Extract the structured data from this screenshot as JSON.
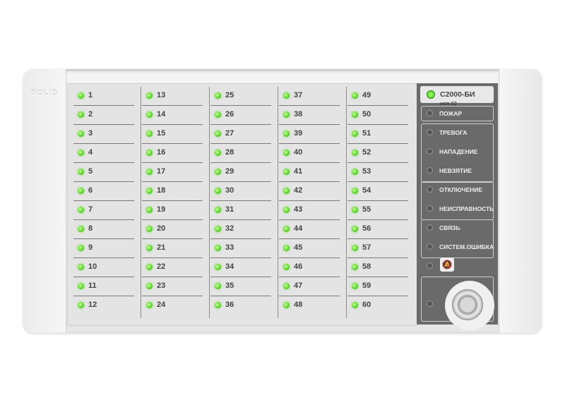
{
  "device": {
    "logo": "BOLID",
    "model": "С2000-БИ",
    "model_variant": "исп.02",
    "led_color": "#5ad12c",
    "panel_color": "#6a6a6a"
  },
  "channels": [
    "1",
    "2",
    "3",
    "4",
    "5",
    "6",
    "7",
    "8",
    "9",
    "10",
    "11",
    "12",
    "13",
    "14",
    "15",
    "16",
    "17",
    "18",
    "19",
    "20",
    "21",
    "22",
    "23",
    "24",
    "25",
    "26",
    "27",
    "28",
    "29",
    "30",
    "31",
    "32",
    "33",
    "34",
    "35",
    "36",
    "37",
    "38",
    "39",
    "40",
    "41",
    "42",
    "43",
    "44",
    "45",
    "46",
    "47",
    "48",
    "49",
    "50",
    "51",
    "52",
    "53",
    "54",
    "55",
    "56",
    "57",
    "58",
    "59",
    "60"
  ],
  "status": {
    "fire": "ПОЖАР",
    "alarm": "ТРЕВОГА",
    "attack": "НАПАДЕНИЕ",
    "not_armed": "НЕВЗЯТИЕ",
    "disabled": "ОТКЛЮЧЕНИЕ",
    "fault": "НЕИСПРАВНОСТЬ",
    "link": "СВЯЗЬ",
    "system_error": "СИСТЕМ.ОШИБКА"
  },
  "icons": {
    "mute": "bell-slash-icon",
    "power": "power-icon",
    "reader": "touch-memory-reader-icon"
  }
}
